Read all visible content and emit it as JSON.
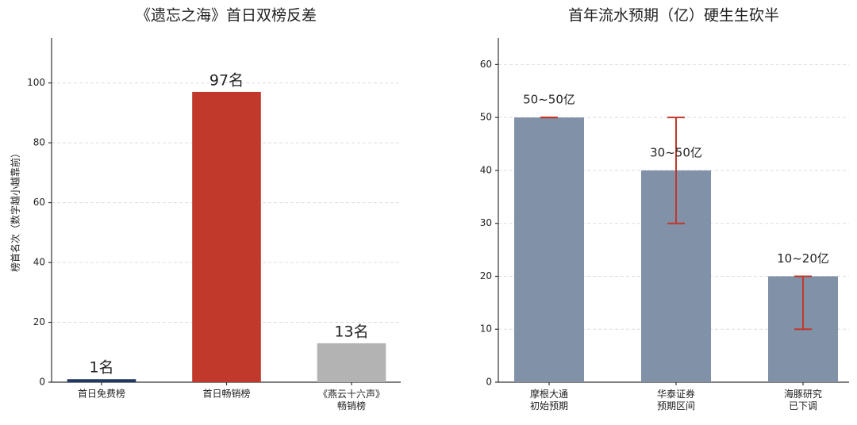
{
  "chart_data": [
    {
      "type": "bar",
      "title": "《遗忘之海》首日双榜反差",
      "ylabel": "榜首名次（数字越小越靠前）",
      "categories": [
        "首日免费榜",
        "首日畅销榜",
        "《燕云十六声》\n畅销榜"
      ],
      "values": [
        1,
        97,
        13
      ],
      "value_labels": [
        "1名",
        "97名",
        "13名"
      ],
      "colors": [
        "#1f3864",
        "#c0392b",
        "#b3b3b3"
      ],
      "ylim": [
        0,
        115
      ],
      "yticks": [
        0,
        20,
        40,
        60,
        80,
        100
      ],
      "grid": true
    },
    {
      "type": "errorbar",
      "title": "首年流水预期（亿）硬生生砍半",
      "categories": [
        "摩根大通\n初始预期",
        "华泰证券\n预期区间",
        "海豚研究\n已下调"
      ],
      "values": [
        50,
        40,
        20
      ],
      "error_lower": [
        0,
        10,
        10
      ],
      "error_upper": [
        0,
        10,
        0
      ],
      "range_labels": [
        "50~50亿",
        "30~50亿",
        "10~20亿"
      ],
      "color": "#8091a8",
      "error_color": "#c0392b",
      "label_color": "#2e4a7a",
      "ylim": [
        0,
        65
      ],
      "yticks": [
        0,
        10,
        20,
        30,
        40,
        50,
        60
      ],
      "grid": true
    }
  ]
}
